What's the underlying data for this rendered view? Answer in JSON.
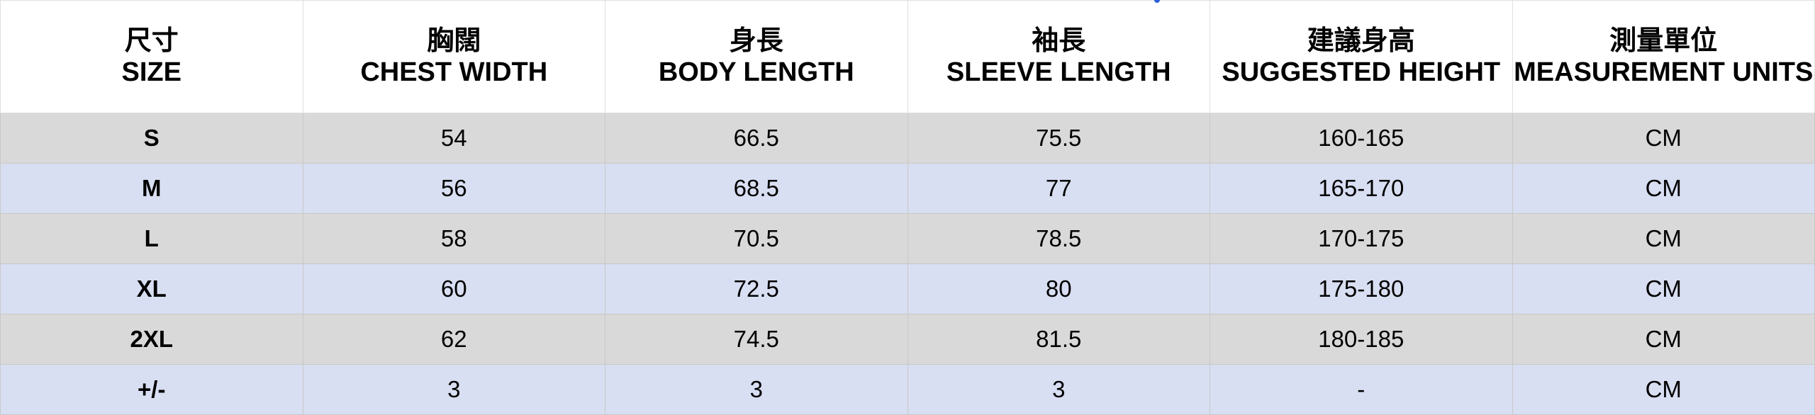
{
  "headers": [
    {
      "zh": "尺寸",
      "en": "SIZE"
    },
    {
      "zh": "胸闊",
      "en": "CHEST WIDTH"
    },
    {
      "zh": "身長",
      "en": "BODY LENGTH"
    },
    {
      "zh": "袖長",
      "en": "SLEEVE LENGTH"
    },
    {
      "zh": "建議身高",
      "en": "SUGGESTED HEIGHT"
    },
    {
      "zh": "測量單位",
      "en": "MEASUREMENT UNITS"
    }
  ],
  "rows": [
    [
      "S",
      "54",
      "66.5",
      "75.5",
      "160-165",
      "CM"
    ],
    [
      "M",
      "56",
      "68.5",
      "77",
      "165-170",
      "CM"
    ],
    [
      "L",
      "58",
      "70.5",
      "78.5",
      "170-175",
      "CM"
    ],
    [
      "XL",
      "60",
      "72.5",
      "80",
      "175-180",
      "CM"
    ],
    [
      "2XL",
      "62",
      "74.5",
      "81.5",
      "180-185",
      "CM"
    ],
    [
      "+/-",
      "3",
      "3",
      "3",
      "-",
      "CM"
    ]
  ],
  "colors": {
    "row_odd": "#d9d9d9",
    "row_even": "#d9dff2",
    "selection_dot": "#2b5fe0"
  }
}
